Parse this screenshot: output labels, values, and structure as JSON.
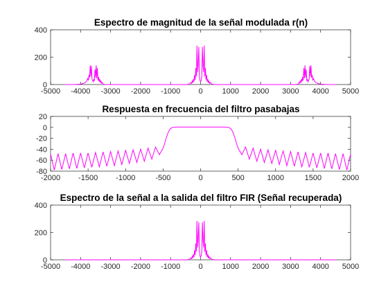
{
  "chart_data": [
    {
      "type": "line",
      "title": "Espectro de magnitud de la señal modulada r(n)",
      "xlabel": "",
      "ylabel": "",
      "xlim": [
        -5000,
        5000
      ],
      "ylim": [
        0,
        400
      ],
      "xticks": [
        -5000,
        -4000,
        -3000,
        -2000,
        -1000,
        0,
        1000,
        2000,
        3000,
        4000,
        5000
      ],
      "yticks": [
        0,
        200,
        400
      ],
      "grid": false,
      "line_color": "#ff00ff",
      "series": [
        {
          "x": [
            -4500,
            -4200,
            -4000,
            -3900,
            -3840,
            -3800,
            -3760,
            -3740,
            -3720,
            -3700,
            -3680,
            -3660,
            -3640,
            -3620,
            -3600,
            -3580,
            -3560,
            -3540,
            -3520,
            -3500,
            -3480,
            -3460,
            -3440,
            -3420,
            -3400,
            -3380,
            -3360,
            -3340,
            -3320,
            -3300,
            -3280,
            -3260,
            -3240,
            -3200,
            -3150,
            -3000,
            -2000,
            -1000,
            -500,
            -400,
            -360,
            -320,
            -300,
            -280,
            -260,
            -240,
            -220,
            -200,
            -180,
            -160,
            -140,
            -120,
            -100,
            -80,
            -60,
            -40,
            -20,
            0,
            20,
            40,
            60,
            80,
            100,
            120,
            140,
            160,
            180,
            200,
            220,
            240,
            260,
            280,
            300,
            320,
            360,
            400,
            500,
            1000,
            2000,
            3000,
            3150,
            3200,
            3240,
            3260,
            3280,
            3300,
            3320,
            3340,
            3360,
            3380,
            3400,
            3420,
            3440,
            3460,
            3480,
            3500,
            3520,
            3540,
            3560,
            3580,
            3600,
            3620,
            3640,
            3660,
            3680,
            3700,
            3720,
            3740,
            3760,
            3800,
            3840,
            3900,
            4000,
            4200,
            4500
          ],
          "y": [
            0,
            0,
            3,
            8,
            15,
            25,
            45,
            30,
            70,
            50,
            140,
            60,
            135,
            40,
            30,
            20,
            40,
            25,
            110,
            50,
            140,
            45,
            120,
            30,
            55,
            20,
            40,
            15,
            25,
            10,
            15,
            6,
            3,
            1,
            0,
            0,
            0,
            0,
            0,
            2,
            6,
            15,
            8,
            25,
            12,
            40,
            20,
            70,
            35,
            120,
            60,
            285,
            90,
            140,
            275,
            60,
            30,
            20,
            30,
            60,
            275,
            140,
            90,
            285,
            60,
            120,
            35,
            70,
            20,
            40,
            12,
            25,
            8,
            15,
            6,
            2,
            0,
            0,
            0,
            0,
            0,
            1,
            3,
            6,
            15,
            10,
            25,
            15,
            40,
            20,
            55,
            30,
            120,
            45,
            140,
            50,
            110,
            25,
            40,
            20,
            30,
            40,
            135,
            60,
            140,
            50,
            70,
            30,
            45,
            25,
            15,
            8,
            3,
            0,
            0
          ]
        }
      ]
    },
    {
      "type": "line",
      "title": "Respuesta en frecuencia del filtro pasabajas",
      "xlabel": "",
      "ylabel": "",
      "xlim": [
        -2000,
        2000
      ],
      "ylim": [
        -80,
        20
      ],
      "xticks": [
        -2000,
        -1500,
        -1000,
        -500,
        0,
        500,
        1000,
        1500,
        2000
      ],
      "yticks": [
        -80,
        -60,
        -40,
        -20,
        0,
        20
      ],
      "grid": false,
      "line_color": "#ff00ff",
      "series": [
        {
          "x": [
            -2000,
            -1950,
            -1900,
            -1850,
            -1800,
            -1750,
            -1700,
            -1650,
            -1600,
            -1550,
            -1500,
            -1450,
            -1400,
            -1350,
            -1300,
            -1250,
            -1200,
            -1150,
            -1100,
            -1050,
            -1000,
            -950,
            -900,
            -850,
            -800,
            -750,
            -700,
            -650,
            -600,
            -550,
            -500,
            -480,
            -460,
            -440,
            -420,
            -400,
            -380,
            -360,
            -340,
            -320,
            -300,
            -200,
            -100,
            0,
            100,
            200,
            300,
            320,
            340,
            360,
            380,
            400,
            420,
            440,
            460,
            480,
            500,
            550,
            600,
            650,
            700,
            750,
            800,
            850,
            900,
            950,
            1000,
            1050,
            1100,
            1150,
            1200,
            1250,
            1300,
            1350,
            1400,
            1450,
            1500,
            1550,
            1600,
            1650,
            1700,
            1750,
            1800,
            1850,
            1900,
            1950,
            2000
          ],
          "y": [
            -49,
            -78,
            -48,
            -77,
            -48,
            -76,
            -47,
            -75,
            -47,
            -74,
            -47,
            -73,
            -46,
            -72,
            -45,
            -71,
            -44,
            -70,
            -43,
            -68,
            -42,
            -66,
            -41,
            -64,
            -40,
            -62,
            -38,
            -58,
            -36,
            -50,
            -38,
            -30,
            -20,
            -12,
            -6,
            -2,
            -0.5,
            0,
            0.3,
            0.5,
            0.5,
            0.5,
            0.5,
            0.5,
            0.5,
            0.5,
            0.5,
            0.5,
            0.3,
            0,
            -0.5,
            -2,
            -6,
            -12,
            -20,
            -30,
            -38,
            -50,
            -36,
            -58,
            -38,
            -62,
            -40,
            -64,
            -41,
            -66,
            -42,
            -68,
            -43,
            -70,
            -44,
            -71,
            -45,
            -72,
            -46,
            -73,
            -47,
            -74,
            -47,
            -75,
            -47,
            -76,
            -48,
            -77,
            -48,
            -78,
            -49
          ]
        }
      ]
    },
    {
      "type": "line",
      "title": "Espectro de la señal a la salida del filtro FIR (Señal recuperada)",
      "xlabel": "",
      "ylabel": "",
      "xlim": [
        -5000,
        5000
      ],
      "ylim": [
        0,
        400
      ],
      "xticks": [
        -5000,
        -4000,
        -3000,
        -2000,
        -1000,
        0,
        1000,
        2000,
        3000,
        4000,
        5000
      ],
      "yticks": [
        0,
        200,
        400
      ],
      "grid": false,
      "line_color": "#ff00ff",
      "series": [
        {
          "x": [
            -4500,
            -3000,
            -1000,
            -500,
            -400,
            -360,
            -320,
            -300,
            -280,
            -260,
            -240,
            -220,
            -200,
            -180,
            -160,
            -140,
            -120,
            -100,
            -80,
            -60,
            -40,
            -20,
            0,
            20,
            40,
            60,
            80,
            100,
            120,
            140,
            160,
            180,
            200,
            220,
            240,
            260,
            280,
            300,
            320,
            360,
            400,
            500,
            1000,
            3000,
            4500
          ],
          "y": [
            0,
            0,
            0,
            0,
            2,
            6,
            15,
            8,
            25,
            12,
            40,
            20,
            70,
            35,
            120,
            60,
            285,
            90,
            140,
            275,
            60,
            30,
            20,
            30,
            60,
            275,
            140,
            90,
            285,
            60,
            120,
            35,
            70,
            20,
            40,
            12,
            25,
            8,
            15,
            6,
            2,
            0,
            0,
            0,
            0
          ]
        }
      ]
    }
  ]
}
